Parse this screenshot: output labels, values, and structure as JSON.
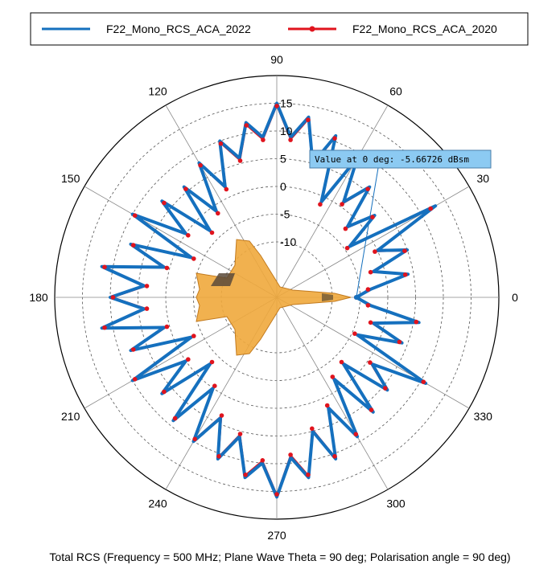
{
  "chart_data": {
    "type": "polar-line",
    "legend": {
      "placement": "top",
      "entries": [
        {
          "name": "F22_Mono_RCS_ACA_2022",
          "color": "#1570be",
          "marker": "none"
        },
        {
          "name": "F22_Mono_RCS_ACA_2020",
          "color": "#e0141e",
          "marker": "dot"
        }
      ]
    },
    "angular_ticks": [
      "0",
      "30",
      "60",
      "90",
      "120",
      "150",
      "180",
      "210",
      "240",
      "270",
      "300",
      "330"
    ],
    "angular_tick_values": [
      0,
      30,
      60,
      90,
      120,
      150,
      180,
      210,
      240,
      270,
      300,
      330
    ],
    "radial_ticks": [
      "15",
      "10",
      "5",
      "0",
      "-5",
      "-10"
    ],
    "radial_tick_values": [
      15,
      10,
      5,
      0,
      -5,
      -10
    ],
    "rlim": [
      -20,
      20
    ],
    "grid": true,
    "annotation": {
      "text": "Value at 0 deg: -5.66726 dBsm",
      "angle": 0,
      "value": -5.66726
    },
    "caption": "Total RCS (Frequency = 500 MHz; Plane Wave Theta = 90 deg; Polarisation angle = 90 deg)",
    "series": [
      {
        "name": "F22_Mono_RCS_ACA_2022",
        "angles": [
          0,
          5,
          10,
          15,
          20,
          25,
          30,
          35,
          40,
          45,
          50,
          55,
          60,
          65,
          70,
          75,
          80,
          85,
          90,
          95,
          100,
          105,
          110,
          115,
          120,
          125,
          130,
          135,
          140,
          145,
          150,
          155,
          160,
          165,
          170,
          175,
          180,
          185,
          190,
          195,
          200,
          205,
          210,
          215,
          220,
          225,
          230,
          235,
          240,
          245,
          250,
          255,
          260,
          265,
          270,
          275,
          280,
          285,
          290,
          295,
          300,
          305,
          310,
          315,
          320,
          325,
          330,
          335,
          340,
          345,
          350,
          355
        ],
        "values": [
          -5.7,
          -3,
          4,
          -2,
          5,
          0,
          13,
          -4,
          3,
          -2,
          6,
          1,
          9,
          -1,
          11,
          5,
          13,
          9,
          15,
          9,
          12,
          6,
          10,
          2,
          8,
          -1,
          6,
          -3,
          7,
          0,
          10,
          -3,
          8,
          1,
          12,
          4,
          10,
          4,
          12,
          1,
          8,
          -3,
          10,
          0,
          7,
          -3,
          9,
          0,
          10,
          4,
          11,
          6,
          13,
          10,
          16,
          9,
          13,
          5,
          11,
          2,
          9,
          -2,
          7,
          -3,
          6,
          1,
          11,
          -4,
          4,
          -2,
          6,
          -3
        ]
      },
      {
        "name": "F22_Mono_RCS_ACA_2020",
        "angles": [
          0,
          5,
          10,
          15,
          20,
          25,
          30,
          35,
          40,
          45,
          50,
          55,
          60,
          65,
          70,
          75,
          80,
          85,
          90,
          95,
          100,
          105,
          110,
          115,
          120,
          125,
          130,
          135,
          140,
          145,
          150,
          155,
          160,
          165,
          170,
          175,
          180,
          185,
          190,
          195,
          200,
          205,
          210,
          215,
          220,
          225,
          230,
          235,
          240,
          245,
          250,
          255,
          260,
          265,
          270,
          275,
          280,
          285,
          290,
          295,
          300,
          305,
          310,
          315,
          320,
          325,
          330,
          335,
          340,
          345,
          350,
          355
        ],
        "values": [
          -5.7,
          -3.5,
          3.5,
          -2.5,
          4.5,
          -0.5,
          12,
          -4.5,
          2.5,
          -2.5,
          5.5,
          0.5,
          8.5,
          -1.5,
          10.5,
          4.5,
          12.5,
          8.5,
          14.5,
          8.5,
          11.5,
          5.5,
          9.5,
          1.5,
          7.5,
          -1.5,
          5.5,
          -3.5,
          6.5,
          -0.5,
          9.5,
          -3.5,
          7.5,
          0.5,
          11.5,
          3.5,
          9.5,
          3.5,
          11.5,
          0.5,
          7.5,
          -3.5,
          9.5,
          -0.5,
          6.5,
          -3.5,
          8.5,
          -0.5,
          9.5,
          3.5,
          10.5,
          5.5,
          12.5,
          9.5,
          15.5,
          8.5,
          12.5,
          4.5,
          10.5,
          1.5,
          8.5,
          -2.5,
          6.5,
          -3.5,
          5.5,
          0.5,
          10.5,
          -4.5,
          3.5,
          -2.5,
          5.5,
          -3.5
        ]
      }
    ]
  },
  "colors": {
    "series_2022": "#1570be",
    "series_2020": "#e0141e",
    "annotation_bg": "#8ccaf2",
    "aircraft": "#f0a83c"
  }
}
